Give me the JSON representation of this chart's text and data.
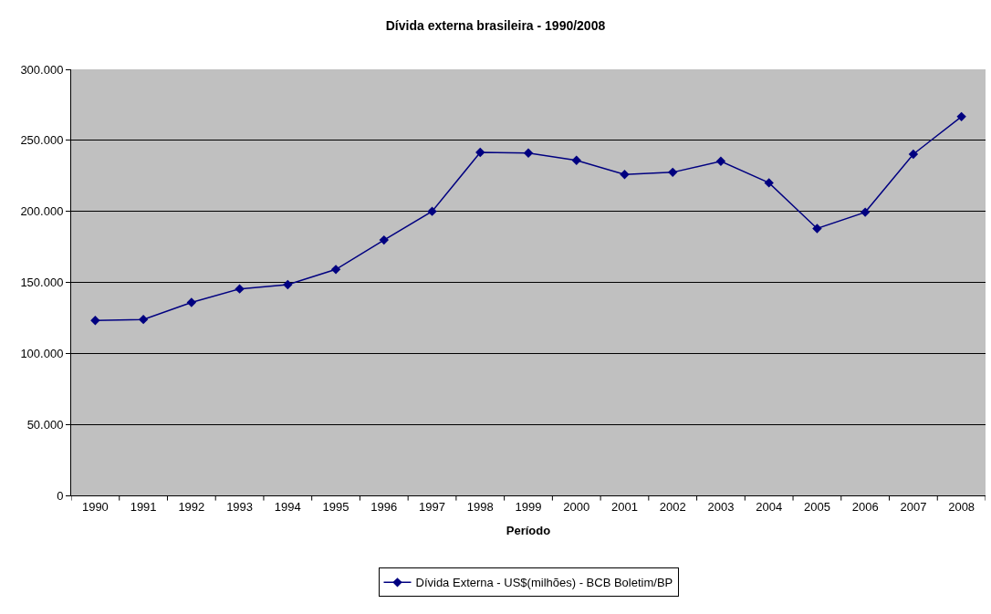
{
  "chart_data": {
    "type": "line",
    "title": "Dívida externa brasileira - 1990/2008",
    "xlabel": "Período",
    "categories": [
      "1990",
      "1991",
      "1992",
      "1993",
      "1994",
      "1995",
      "1996",
      "1997",
      "1998",
      "1999",
      "2000",
      "2001",
      "2002",
      "2003",
      "2004",
      "2005",
      "2006",
      "2007",
      "2008"
    ],
    "series": [
      {
        "name": "Dívida Externa - US$(milhões) - BCB Boletim/BP",
        "color": "#000080",
        "values": [
          123200,
          123900,
          135900,
          145400,
          148400,
          159100,
          179800,
          200000,
          241500,
          241100,
          235900,
          226000,
          227500,
          235300,
          220100,
          187900,
          199400,
          240300,
          266700
        ]
      }
    ],
    "ylim": [
      0,
      300000
    ],
    "yticks": [
      {
        "value": 0,
        "label": "0"
      },
      {
        "value": 50000,
        "label": "50.000"
      },
      {
        "value": 100000,
        "label": "100.000"
      },
      {
        "value": 150000,
        "label": "150.000"
      },
      {
        "value": 200000,
        "label": "200.000"
      },
      {
        "value": 250000,
        "label": "250.000"
      },
      {
        "value": 300000,
        "label": "300.000"
      }
    ],
    "grid": "y",
    "legend": "bottom",
    "marker": "diamond",
    "line_style": "solid"
  }
}
